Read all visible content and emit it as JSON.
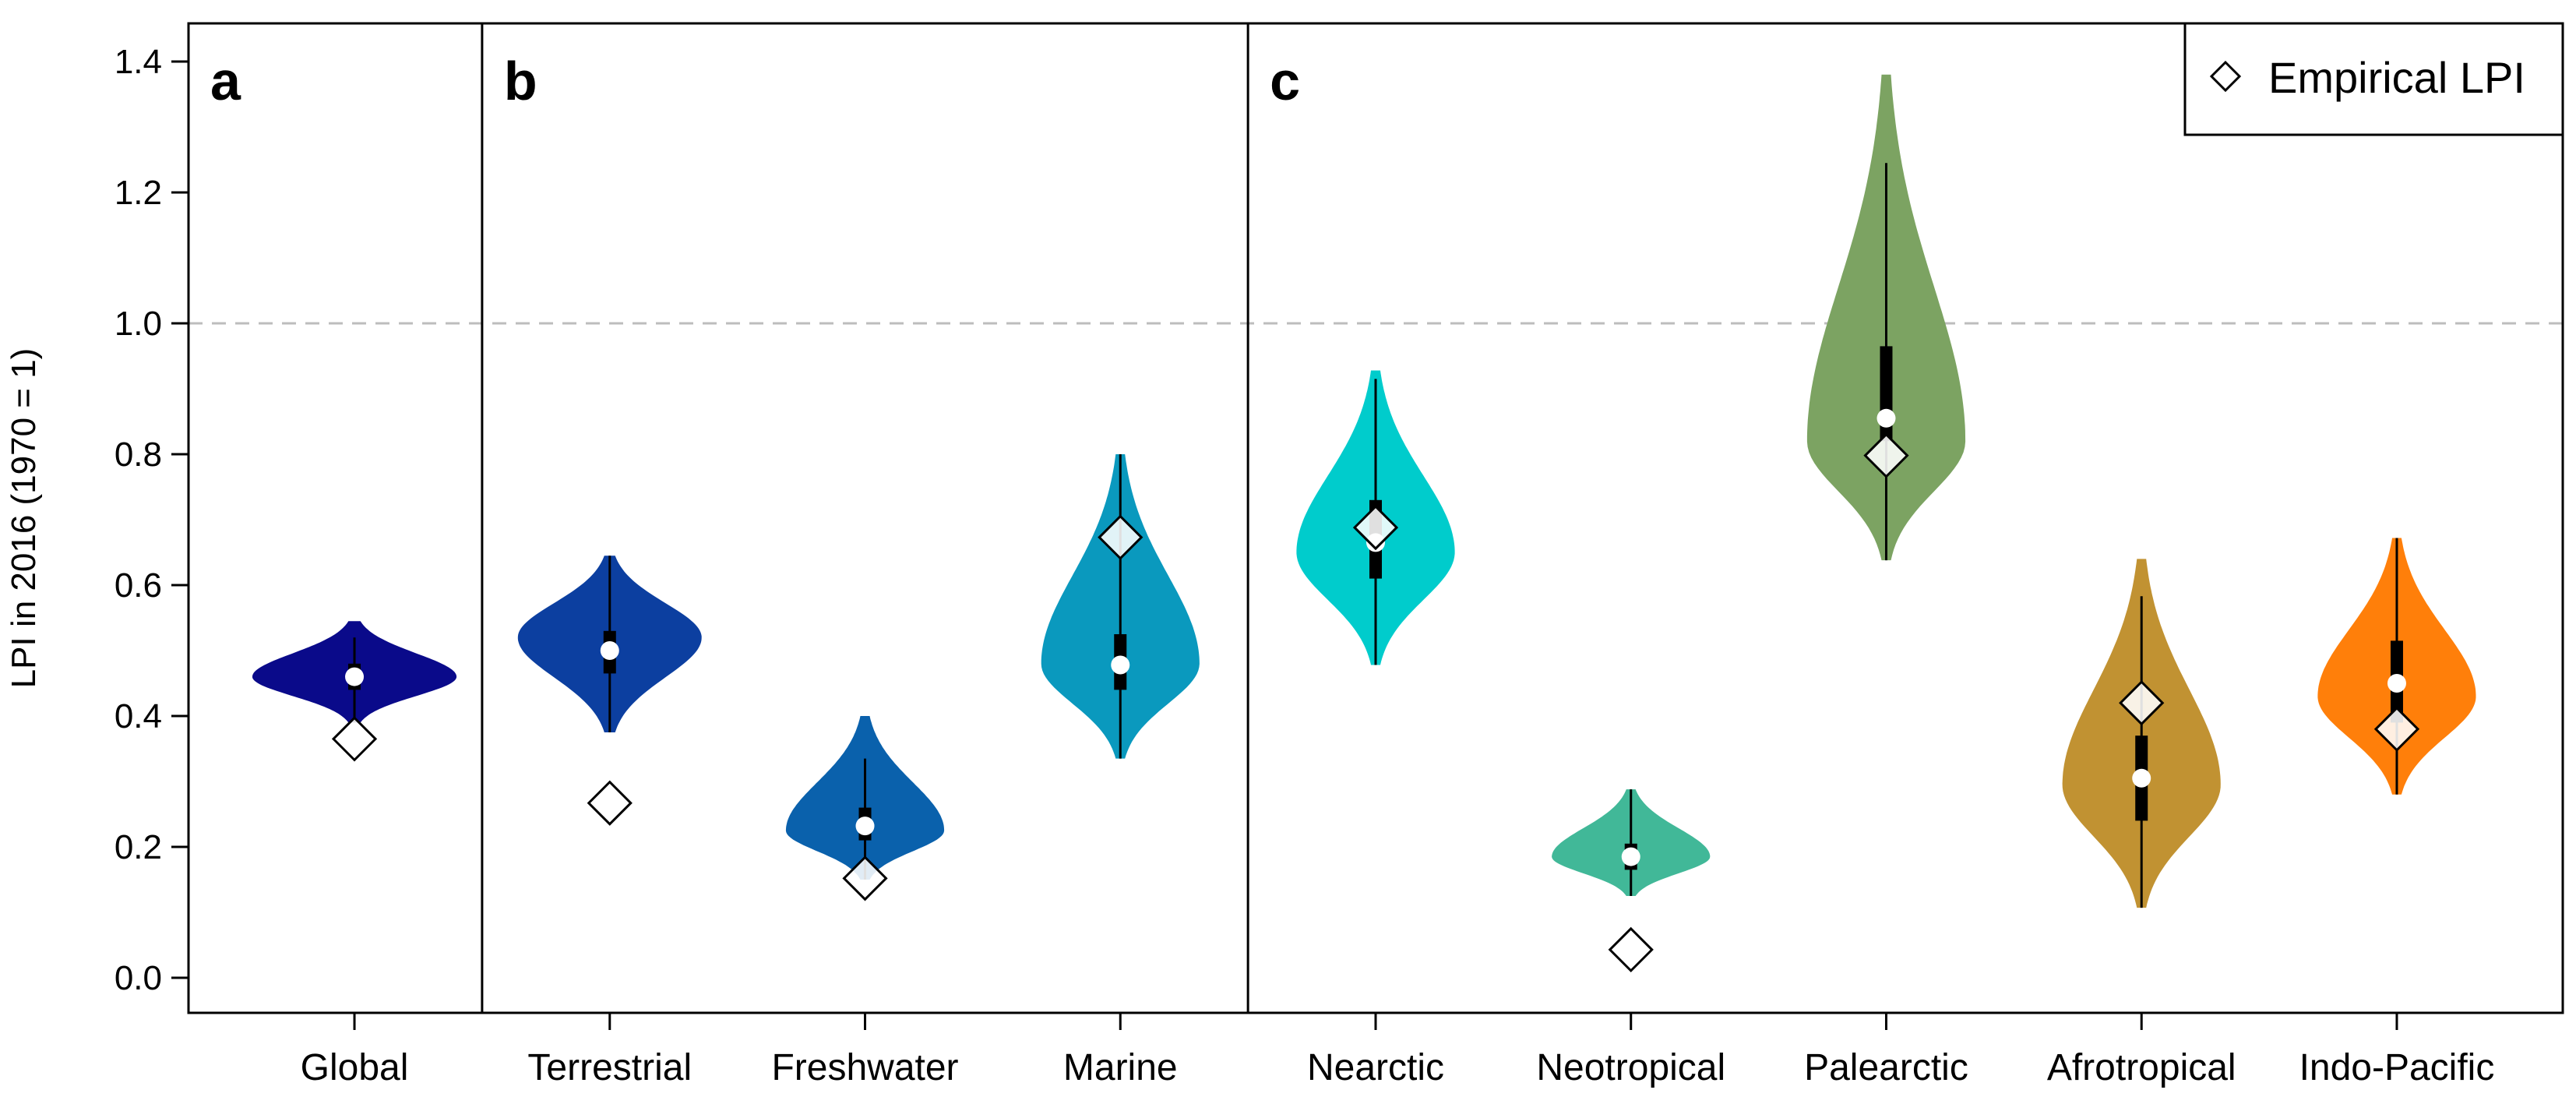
{
  "chart_data": {
    "type": "violin",
    "ylabel": "LPI in 2016 (1970 = 1)",
    "ylim": [
      -0.05,
      1.45
    ],
    "yticks": [
      0.0,
      0.2,
      0.4,
      0.6,
      0.8,
      1.0,
      1.2,
      1.4
    ],
    "ytick_labels": [
      "0.0",
      "0.2",
      "0.4",
      "0.6",
      "0.8",
      "1.0",
      "1.2",
      "1.4"
    ],
    "reference_line": 1.0,
    "panels": [
      {
        "letter": "a",
        "categories": [
          0
        ]
      },
      {
        "letter": "b",
        "categories": [
          1,
          2,
          3
        ]
      },
      {
        "letter": "c",
        "categories": [
          4,
          5,
          6,
          7,
          8
        ]
      }
    ],
    "legend": {
      "label": "Empirical LPI",
      "position": "top-right"
    },
    "series": [
      {
        "category": "Global",
        "color": "#0a0a8a",
        "min": 0.39,
        "max": 0.545,
        "mode": 0.46,
        "width": 0.8,
        "skew": 0.0,
        "q1": 0.44,
        "q3": 0.48,
        "median": 0.46,
        "whisker_low": 0.39,
        "whisker_high": 0.52,
        "empirical": 0.365
      },
      {
        "category": "Terrestrial",
        "color": "#0c3fa0",
        "min": 0.375,
        "max": 0.645,
        "mode": 0.52,
        "width": 0.72,
        "skew": 0.3,
        "q1": 0.465,
        "q3": 0.53,
        "median": 0.5,
        "whisker_low": 0.375,
        "whisker_high": 0.645,
        "empirical": 0.267
      },
      {
        "category": "Freshwater",
        "color": "#0a61ac",
        "min": 0.15,
        "max": 0.4,
        "mode": 0.225,
        "width": 0.62,
        "skew": 0.3,
        "q1": 0.21,
        "q3": 0.26,
        "median": 0.232,
        "whisker_low": 0.15,
        "whisker_high": 0.335,
        "empirical": 0.152
      },
      {
        "category": "Marine",
        "color": "#0a99be",
        "min": 0.335,
        "max": 0.8,
        "mode": 0.48,
        "width": 0.62,
        "skew": 0.3,
        "q1": 0.44,
        "q3": 0.525,
        "median": 0.478,
        "whisker_low": 0.335,
        "whisker_high": 0.8,
        "empirical": 0.673
      },
      {
        "category": "Nearctic",
        "color": "#00cccc",
        "min": 0.478,
        "max": 0.928,
        "mode": 0.65,
        "width": 0.62,
        "skew": 0.35,
        "q1": 0.61,
        "q3": 0.73,
        "median": 0.665,
        "whisker_low": 0.478,
        "whisker_high": 0.915,
        "empirical": 0.688
      },
      {
        "category": "Neotropical",
        "color": "#41b898",
        "min": 0.125,
        "max": 0.288,
        "mode": 0.185,
        "width": 0.62,
        "skew": 0.3,
        "q1": 0.165,
        "q3": 0.205,
        "median": 0.185,
        "whisker_low": 0.125,
        "whisker_high": 0.288,
        "empirical": 0.043
      },
      {
        "category": "Palearctic",
        "color": "#7ca362",
        "min": 0.638,
        "max": 1.38,
        "mode": 0.82,
        "width": 0.62,
        "skew": 0.3,
        "q1": 0.82,
        "q3": 0.965,
        "median": 0.855,
        "whisker_low": 0.638,
        "whisker_high": 1.245,
        "empirical": 0.798
      },
      {
        "category": "Afrotropical",
        "color": "#c19232",
        "min": 0.107,
        "max": 0.64,
        "mode": 0.295,
        "width": 0.62,
        "skew": 0.3,
        "q1": 0.24,
        "q3": 0.37,
        "median": 0.305,
        "whisker_low": 0.107,
        "whisker_high": 0.583,
        "empirical": 0.42
      },
      {
        "category": "Indo-Pacific",
        "color": "#ff7f0a",
        "min": 0.28,
        "max": 0.672,
        "mode": 0.43,
        "width": 0.62,
        "skew": 0.3,
        "q1": 0.39,
        "q3": 0.515,
        "median": 0.45,
        "whisker_low": 0.28,
        "whisker_high": 0.672,
        "empirical": 0.38
      }
    ]
  }
}
